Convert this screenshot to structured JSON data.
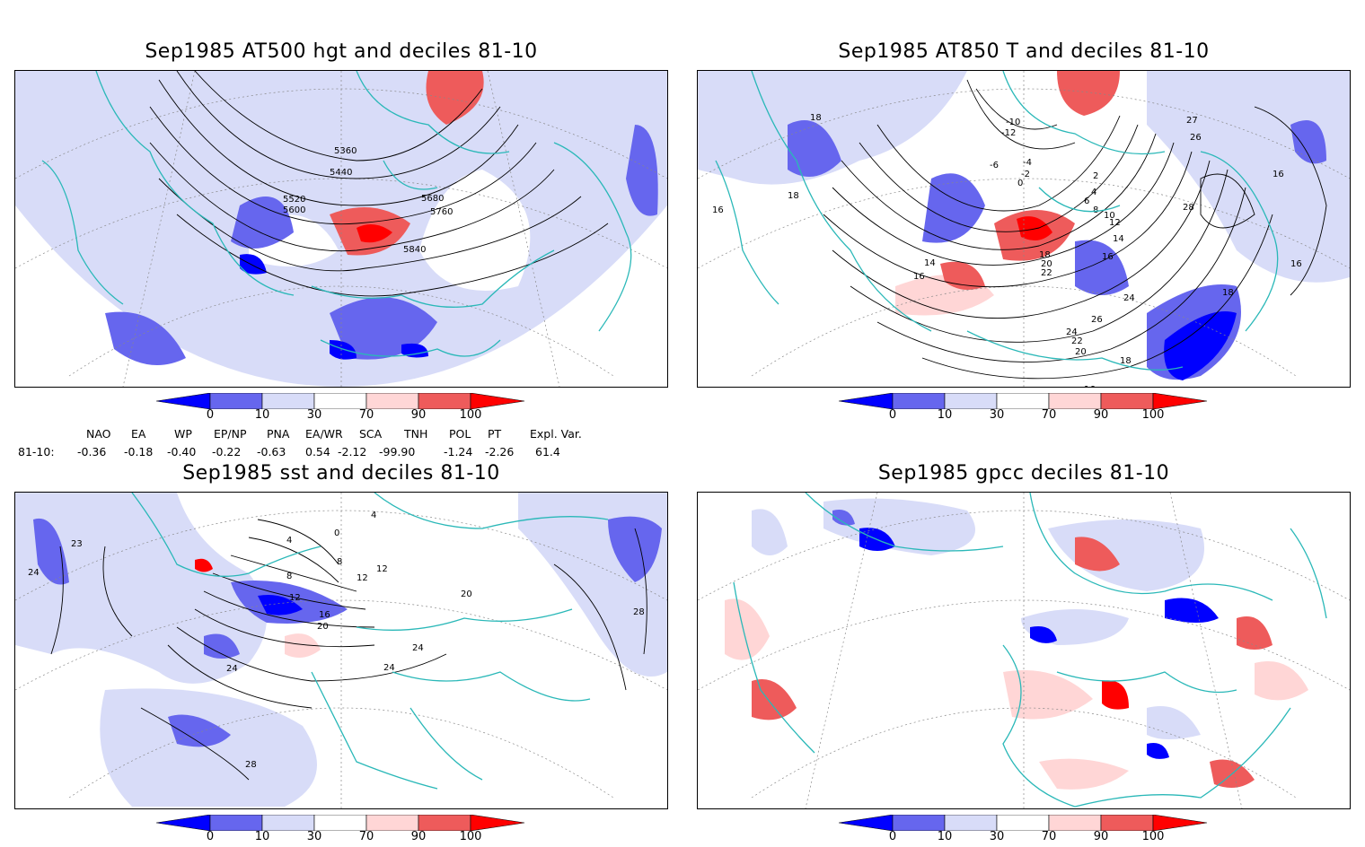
{
  "panels": [
    {
      "title": "Sep1985 AT500 hgt and deciles 81-10",
      "contour_labels": [
        "5360",
        "5440",
        "5520",
        "5600",
        "5680",
        "5760",
        "5840"
      ]
    },
    {
      "title": "Sep1985 AT850 T and deciles 81-10",
      "contour_labels": [
        "18",
        "16",
        "18",
        "-10",
        "-12",
        "-6",
        "-4",
        "-2",
        "0",
        "2",
        "4",
        "6",
        "8",
        "10",
        "12",
        "14",
        "16",
        "18",
        "20",
        "22",
        "24",
        "26",
        "28",
        "24",
        "22",
        "20",
        "18",
        "16",
        "27",
        "26",
        "16",
        "18",
        "16",
        "14",
        "16"
      ]
    },
    {
      "title": "Sep1985 sst and deciles 81-10",
      "contour_labels": [
        "23",
        "24",
        "4",
        "0",
        "8",
        "12",
        "16",
        "20",
        "24",
        "24",
        "24",
        "20",
        "28",
        "28",
        "12",
        "12",
        "4",
        "8"
      ]
    },
    {
      "title": "Sep1985 gpcc deciles 81-10",
      "contour_labels": []
    }
  ],
  "colorbar": {
    "labels": [
      "0",
      "10",
      "30",
      "70",
      "90",
      "100"
    ],
    "colors": [
      "#0000ff",
      "#6666ee",
      "#d8dcf8",
      "#ffffff",
      "#ffd6d6",
      "#ee5b5b",
      "#ff0000"
    ]
  },
  "indices": {
    "names": [
      "NAO",
      "EA",
      "WP",
      "EP/NP",
      "PNA",
      "EA/WR",
      "SCA",
      "TNH",
      "POL",
      "PT",
      "Expl. Var."
    ],
    "row_label": "81-10:",
    "values": [
      "-0.36",
      "-0.18",
      "-0.40",
      "-0.22",
      "-0.63",
      "0.54",
      "-2.12",
      "-99.90",
      "-1.24",
      "-2.26",
      "61.4"
    ]
  },
  "colors": {
    "coast": "#2ab8b8",
    "contour": "#000000",
    "grid": "#888888"
  }
}
